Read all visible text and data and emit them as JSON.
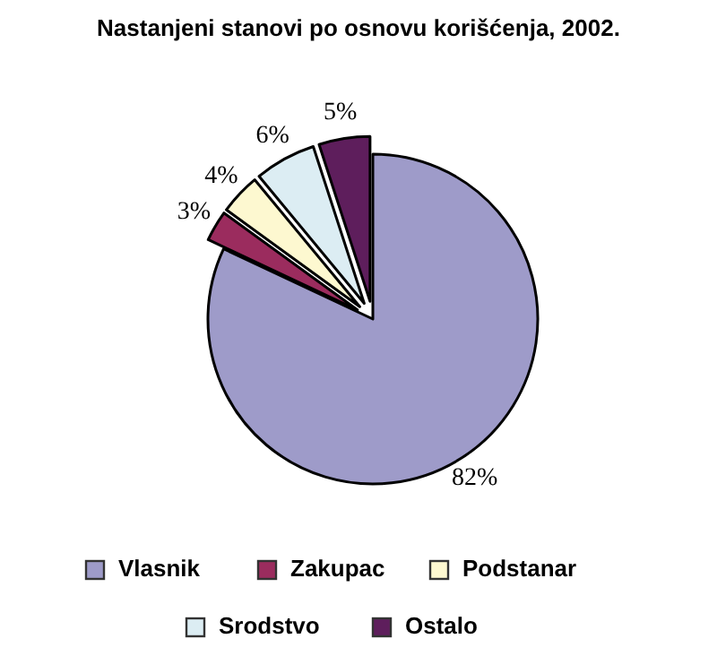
{
  "chart_data": {
    "type": "pie",
    "title": "Nastanjeni stanovi po osnovu korišćenja, 2002.",
    "categories": [
      "Vlasnik",
      "Zakupac",
      "Podstanar",
      "Srodstvo",
      "Ostalo"
    ],
    "values": [
      82,
      3,
      4,
      6,
      5
    ],
    "colors": [
      "#9e9bc9",
      "#9b2c5e",
      "#fdf8d0",
      "#dcedf3",
      "#5e1e5c"
    ],
    "value_labels": [
      "82%",
      "3%",
      "4%",
      "6%",
      "5%"
    ],
    "legend": "bottom"
  }
}
